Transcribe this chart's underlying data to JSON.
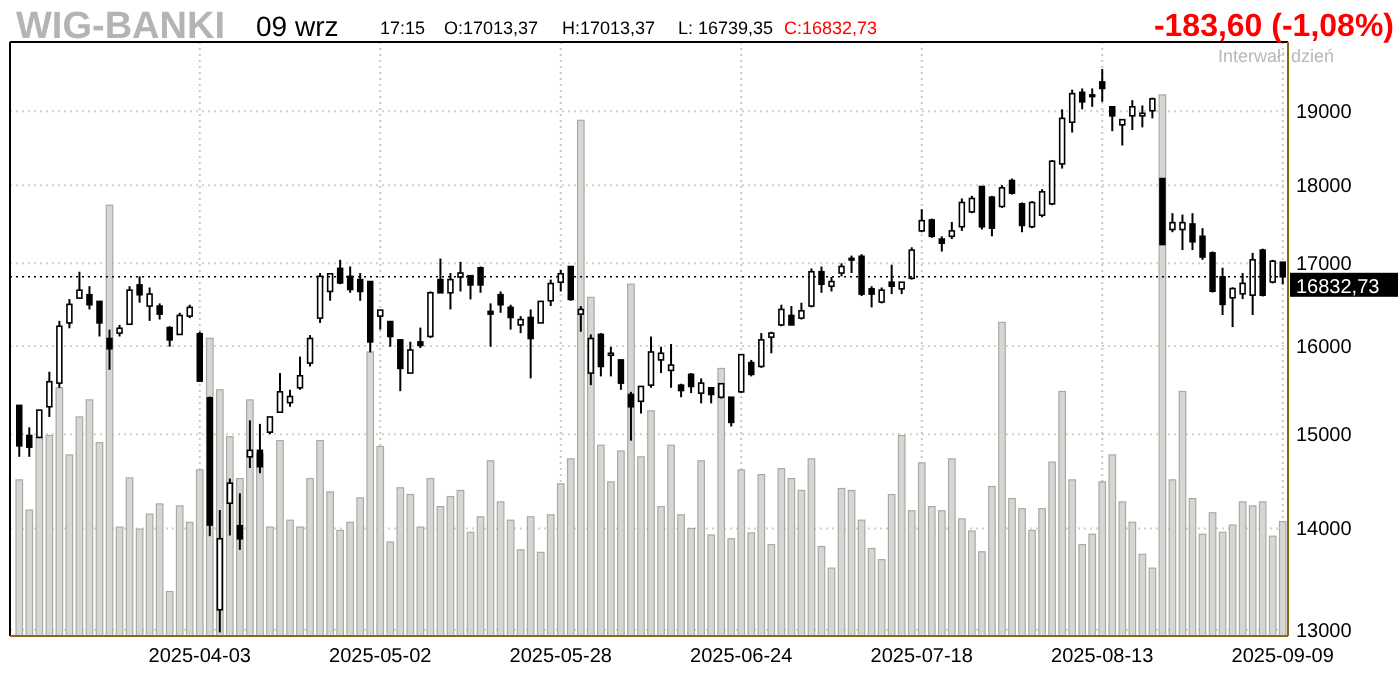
{
  "chart_data": {
    "type": "candlestick",
    "title": "WIG-BANKI",
    "subtitle": "09 wrz",
    "annotations": [
      "17:15",
      "O:17013,37",
      "H:17013,37",
      "L: 16739,35",
      "C:16832,73",
      "-183,60  (-1,08%)",
      "Interwał: dzień"
    ],
    "categories": [
      null,
      null,
      null,
      null,
      null,
      null,
      null,
      null,
      null,
      null,
      null,
      null,
      null,
      null,
      null,
      null,
      null,
      null,
      "2025-04-03",
      null,
      null,
      null,
      null,
      null,
      null,
      null,
      null,
      null,
      null,
      null,
      null,
      null,
      null,
      null,
      null,
      null,
      "2025-05-02",
      null,
      null,
      null,
      null,
      null,
      null,
      null,
      null,
      null,
      null,
      null,
      null,
      null,
      null,
      null,
      null,
      null,
      "2025-05-28",
      null,
      null,
      null,
      null,
      null,
      null,
      null,
      null,
      null,
      null,
      null,
      null,
      null,
      null,
      null,
      null,
      null,
      "2025-06-24",
      null,
      null,
      null,
      null,
      null,
      null,
      null,
      null,
      null,
      null,
      null,
      null,
      null,
      null,
      null,
      null,
      null,
      "2025-07-18",
      null,
      null,
      null,
      null,
      null,
      null,
      null,
      null,
      null,
      null,
      null,
      null,
      null,
      null,
      null,
      null,
      null,
      "2025-08-13",
      null,
      null,
      null,
      null,
      null,
      null,
      null,
      null,
      null,
      null,
      null,
      null,
      null,
      null,
      null,
      null,
      null,
      "2025-09-09"
    ],
    "series": [
      {
        "type": "bar",
        "color": "#d6d6d2",
        "base": [
          12940,
          12940,
          12940,
          12940,
          12940,
          12940,
          12940,
          12940,
          12940,
          12940,
          12940,
          12940,
          12940,
          12940,
          12940,
          12940,
          12940,
          12940,
          12940,
          12940,
          12940,
          12940,
          12940,
          12940,
          12940,
          12940,
          12940,
          12940,
          12940,
          12940,
          12940,
          12940,
          12940,
          12940,
          12940,
          12940,
          12940,
          12940,
          12940,
          12940,
          12940,
          12940,
          12940,
          12940,
          12940,
          12940,
          12940,
          12940,
          12940,
          12940,
          12940,
          12940,
          12940,
          12940,
          12940,
          12940,
          12940,
          12940,
          12940,
          12940,
          12940,
          12940,
          12940,
          12940,
          12940,
          12940,
          12940,
          12940,
          12940,
          12940,
          12940,
          12940,
          12940,
          12940,
          12940,
          12940,
          12940,
          12940,
          12940,
          12940,
          12940,
          12940,
          12940,
          12940,
          12940,
          12940,
          12940,
          12940,
          12940,
          12940,
          12940,
          12940,
          12940,
          12940,
          12940,
          12940,
          12940,
          12940,
          12940,
          12940,
          12940,
          12940,
          12940,
          12940,
          12940,
          12940,
          12940,
          12940,
          12940,
          12940,
          12940,
          12940,
          12940,
          12940,
          12940,
          12940,
          12940,
          12940,
          12940,
          12940,
          12940,
          12940,
          12940,
          12940,
          12940,
          12940,
          12940
        ],
        "values": [
          1567,
          1250,
          2025,
          2046,
          2579,
          1835,
          2251,
          2442,
          1968,
          4799,
          1074,
          1588,
          1053,
          1208,
          1314,
          428,
          1293,
          1123,
          1673,
          3152,
          2556,
          2032,
          1581,
          2442,
          1849,
          1074,
          1990,
          1145,
          1074,
          1581,
          1990,
          1440,
          1040,
          1123,
          1377,
          2991,
          1926,
          922,
          1483,
          1412,
          1074,
          1581,
          1286,
          1391,
          1455,
          1021,
          1180,
          1771,
          1335,
          1145,
          843,
          1180,
          817,
          1201,
          1525,
          1792,
          5936,
          3641,
          1940,
          1546,
          1877,
          3802,
          1814,
          2319,
          1286,
          1940,
          1201,
          1060,
          1771,
          994,
          2800,
          955,
          1673,
          1014,
          1623,
          896,
          1687,
          1581,
          1455,
          1792,
          876,
          659,
          1476,
          1455,
          1145,
          856,
          744,
          1412,
          2046,
          1243,
          1750,
          1286,
          1243,
          1792,
          1159,
          1034,
          823,
          1497,
          3340,
          1370,
          1264,
          1040,
          1264,
          1757,
          2537,
          1567,
          896,
          1001,
          1546,
          1835,
          1335,
          1124,
          797,
          659,
          6290,
          1567,
          2537,
          1370,
          1001,
          1222,
          1021,
          1095,
          1335,
          1293,
          1335,
          981,
          1131
        ]
      },
      {
        "color": "#000000",
        "ohlc": [
          [
            15320,
            15320,
            14754,
            14873
          ],
          [
            14986,
            15076,
            14754,
            14859
          ],
          [
            14965,
            15267,
            14965,
            15267
          ],
          [
            15305,
            15702,
            15191,
            15588
          ],
          [
            15572,
            16298,
            15519,
            16234
          ],
          [
            16274,
            16560,
            16210,
            16496
          ],
          [
            16572,
            16895,
            16572,
            16669
          ],
          [
            16613,
            16717,
            16435,
            16492
          ],
          [
            16532,
            16532,
            16113,
            16274
          ],
          [
            16089,
            16194,
            15725,
            15969
          ],
          [
            16153,
            16250,
            16113,
            16210
          ],
          [
            16258,
            16717,
            16258,
            16669
          ],
          [
            16733,
            16838,
            16516,
            16613
          ],
          [
            16476,
            16701,
            16298,
            16621
          ],
          [
            16476,
            16508,
            16314,
            16379
          ],
          [
            16218,
            16234,
            15992,
            16073
          ],
          [
            16137,
            16395,
            16137,
            16363
          ],
          [
            16355,
            16492,
            16331,
            16460
          ],
          [
            16145,
            16169,
            15595,
            15595
          ],
          [
            15405,
            15420,
            13921,
            14035
          ],
          [
            13191,
            14190,
            12974,
            13895
          ],
          [
            14261,
            14521,
            13928,
            14472
          ],
          [
            14028,
            14366,
            13783,
            13895
          ],
          [
            14754,
            15153,
            14634,
            14824
          ],
          [
            14824,
            15114,
            14578,
            14648
          ],
          [
            15023,
            15191,
            15000,
            15191
          ],
          [
            15244,
            15687,
            15244,
            15473
          ],
          [
            15351,
            15496,
            15305,
            15420
          ],
          [
            15519,
            15877,
            15496,
            15656
          ],
          [
            15802,
            16129,
            15763,
            16089
          ],
          [
            16331,
            16879,
            16274,
            16838
          ],
          [
            16653,
            16879,
            16540,
            16870
          ],
          [
            16936,
            17043,
            16742,
            16758
          ],
          [
            16838,
            16960,
            16637,
            16677
          ],
          [
            16798,
            16879,
            16540,
            16653
          ],
          [
            16774,
            16774,
            15927,
            16049
          ],
          [
            16355,
            16427,
            16194,
            16427
          ],
          [
            16290,
            16290,
            15992,
            16113
          ],
          [
            16073,
            16073,
            15481,
            15741
          ],
          [
            15687,
            16051,
            15687,
            15954
          ],
          [
            16049,
            16218,
            15977,
            16008
          ],
          [
            16113,
            16653,
            16097,
            16637
          ],
          [
            16798,
            17059,
            16637,
            16637
          ],
          [
            16637,
            16879,
            16435,
            16798
          ],
          [
            16830,
            17018,
            16653,
            16879
          ],
          [
            16846,
            16846,
            16556,
            16733
          ],
          [
            16944,
            16960,
            16637,
            16733
          ],
          [
            16411,
            16508,
            15992,
            16379
          ],
          [
            16613,
            16653,
            16395,
            16492
          ],
          [
            16460,
            16492,
            16194,
            16339
          ],
          [
            16250,
            16355,
            16153,
            16314
          ],
          [
            16339,
            16435,
            15626,
            16089
          ],
          [
            16274,
            16532,
            16274,
            16532
          ],
          [
            16540,
            16798,
            16476,
            16750
          ],
          [
            16766,
            16919,
            16653,
            16870
          ],
          [
            16960,
            16960,
            16540,
            16556
          ],
          [
            16379,
            16476,
            16169,
            16435
          ],
          [
            15687,
            16137,
            15549,
            16089
          ],
          [
            16137,
            16153,
            15649,
            15763
          ],
          [
            15893,
            15992,
            15649,
            15916
          ],
          [
            15839,
            15839,
            15496,
            15572
          ],
          [
            15443,
            15473,
            14930,
            15305
          ],
          [
            15366,
            15534,
            15229,
            15534
          ],
          [
            15549,
            16113,
            15519,
            15931
          ],
          [
            15839,
            15992,
            15687,
            15916
          ],
          [
            15718,
            16024,
            15519,
            15779
          ],
          [
            15549,
            15565,
            15412,
            15488
          ],
          [
            15672,
            15687,
            15458,
            15534
          ],
          [
            15458,
            15626,
            15343,
            15572
          ],
          [
            15519,
            15519,
            15343,
            15443
          ],
          [
            15412,
            15565,
            15397,
            15565
          ],
          [
            15412,
            15412,
            15085,
            15131
          ],
          [
            15473,
            15900,
            15458,
            15900
          ],
          [
            15808,
            15839,
            15649,
            15672
          ],
          [
            15763,
            16153,
            15748,
            16073
          ],
          [
            16105,
            16169,
            15916,
            16153
          ],
          [
            16250,
            16492,
            16234,
            16435
          ],
          [
            16363,
            16476,
            16250,
            16250
          ],
          [
            16331,
            16516,
            16314,
            16419
          ],
          [
            16476,
            16936,
            16460,
            16895
          ],
          [
            16895,
            16960,
            16637,
            16742
          ],
          [
            16717,
            16830,
            16653,
            16774
          ],
          [
            16879,
            17000,
            16838,
            16960
          ],
          [
            17061,
            17096,
            16879,
            17061
          ],
          [
            17087,
            17113,
            16597,
            16621
          ],
          [
            16685,
            16717,
            16460,
            16621
          ],
          [
            16524,
            16701,
            16508,
            16669
          ],
          [
            16766,
            16982,
            16621,
            16717
          ],
          [
            16685,
            16766,
            16621,
            16766
          ],
          [
            16814,
            17200,
            16798,
            17165
          ],
          [
            17408,
            17687,
            17391,
            17539
          ],
          [
            17548,
            17565,
            17321,
            17339
          ],
          [
            17304,
            17339,
            17147,
            17252
          ],
          [
            17339,
            17522,
            17304,
            17408
          ],
          [
            17461,
            17826,
            17408,
            17774
          ],
          [
            17652,
            17861,
            17635,
            17826
          ],
          [
            17983,
            17983,
            17426,
            17461
          ],
          [
            17843,
            17861,
            17339,
            17443
          ],
          [
            17722,
            18000,
            17704,
            17965
          ],
          [
            18062,
            18088,
            17878,
            17896
          ],
          [
            17756,
            17774,
            17391,
            17478
          ],
          [
            17461,
            17791,
            17443,
            17774
          ],
          [
            17609,
            17948,
            17583,
            17913
          ],
          [
            17756,
            18336,
            17739,
            18319
          ],
          [
            18283,
            19028,
            18221,
            18903
          ],
          [
            18850,
            19304,
            18708,
            19248
          ],
          [
            19267,
            19322,
            19028,
            19133
          ],
          [
            19230,
            19322,
            19064,
            19212
          ],
          [
            19414,
            19598,
            19133,
            19322
          ],
          [
            19064,
            19064,
            18726,
            18938
          ],
          [
            18814,
            18885,
            18531,
            18885
          ],
          [
            18938,
            19156,
            18743,
            19064
          ],
          [
            18938,
            19083,
            18779,
            18973
          ],
          [
            19009,
            19193,
            18903,
            19175
          ],
          [
            18088,
            18088,
            17235,
            17235
          ],
          [
            17426,
            17635,
            17391,
            17513
          ],
          [
            17426,
            17617,
            17165,
            17513
          ],
          [
            17496,
            17635,
            17165,
            17270
          ],
          [
            17339,
            17443,
            17043,
            17078
          ],
          [
            17130,
            17148,
            16640,
            16656
          ],
          [
            16832,
            16944,
            16368,
            16496
          ],
          [
            16576,
            16704,
            16224,
            16688
          ],
          [
            16624,
            16880,
            16560,
            16752
          ],
          [
            16608,
            17130,
            16368,
            17043
          ],
          [
            17165,
            17183,
            16592,
            16608
          ],
          [
            16768,
            17043,
            16752,
            17026
          ],
          [
            17013.37,
            17013.37,
            16739.35,
            16832.73
          ]
        ]
      }
    ],
    "ylim": [
      12940,
      19990
    ],
    "yticks": [
      13000,
      14000,
      15000,
      16000,
      17000,
      18000,
      19000
    ],
    "log": "y",
    "grid": true,
    "ref_lines": [
      {
        "axis": "y",
        "value": 16832.73,
        "label": "16832,73",
        "color": "#000000",
        "line_style": "dotted"
      }
    ]
  }
}
